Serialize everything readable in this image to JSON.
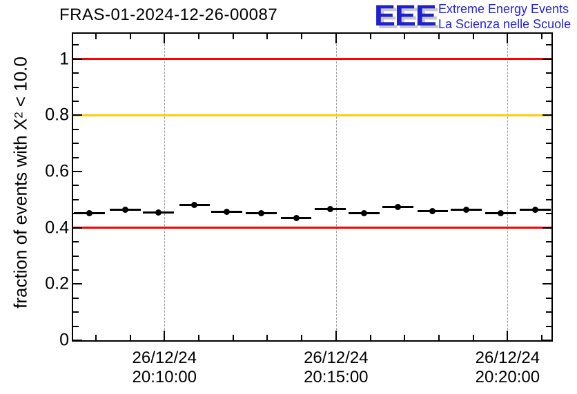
{
  "window": {
    "background": "#ffffff"
  },
  "header": {
    "title": "FRAS-01-2024-12-26-00087",
    "logo": {
      "acronym": "EEE",
      "subtitle_line1": "Extreme Energy Events",
      "subtitle_line2": "La Scienza nelle Scuole",
      "acronym_color": "#1f1fd4",
      "acronym_shadow_color": "#c9c9c9",
      "text_color": "#2222dd"
    }
  },
  "chart_data": {
    "type": "scatter",
    "title": "FRAS-01-2024-12-26-00087",
    "ylabel": "fraction of events with X^2 < 10.0",
    "ylabel_pre": "fraction of events with X",
    "ylabel_sup": "2",
    "ylabel_post": " < 10.0",
    "xlabel": "",
    "ylim": [
      0,
      1.09
    ],
    "y_major_ticks": [
      0,
      0.2,
      0.4,
      0.6,
      0.8,
      1.0
    ],
    "y_major_tick_labels": [
      "0",
      "0.2",
      "0.4",
      "0.6",
      "0.8",
      "1"
    ],
    "y_minor_tick_step": 0.05,
    "xlim_minutes_from_20_10": [
      -2.66,
      11.28
    ],
    "x_minor_tick_step_minutes": 1,
    "x_major_ticks_minutes": [
      0,
      5,
      10
    ],
    "x_major_tick_labels": [
      {
        "date": "26/12/24",
        "time": "20:10:00"
      },
      {
        "date": "26/12/24",
        "time": "20:15:00"
      },
      {
        "date": "26/12/24",
        "time": "20:20:00"
      }
    ],
    "grid": {
      "vertical_dashed_at_major_x": true,
      "color": "#999999"
    },
    "reference_lines": [
      {
        "y": 1.0,
        "color": "#ff0000"
      },
      {
        "y": 0.8,
        "color": "#ffcc00"
      },
      {
        "y": 0.4,
        "color": "#ff0000"
      }
    ],
    "series": [
      {
        "name": "fraction of events with chi2 < 10.0 per time bin",
        "marker": "filled-circle",
        "color": "#000000",
        "x_error_halfwidth_minutes": 0.45,
        "x_minutes_from_20_10": [
          -2.18,
          -1.14,
          -0.18,
          0.88,
          1.82,
          2.82,
          3.84,
          4.84,
          5.82,
          6.8,
          7.82,
          8.8,
          9.8,
          10.8
        ],
        "x_times_estimated": [
          "20:07:49",
          "20:08:52",
          "20:09:49",
          "20:10:53",
          "20:11:49",
          "20:12:49",
          "20:13:50",
          "20:14:50",
          "20:15:49",
          "20:16:48",
          "20:17:49",
          "20:18:48",
          "20:19:48",
          "20:20:48"
        ],
        "values": [
          0.453,
          0.463,
          0.455,
          0.482,
          0.456,
          0.453,
          0.434,
          0.466,
          0.453,
          0.474,
          0.46,
          0.463,
          0.451,
          0.463
        ]
      }
    ]
  }
}
